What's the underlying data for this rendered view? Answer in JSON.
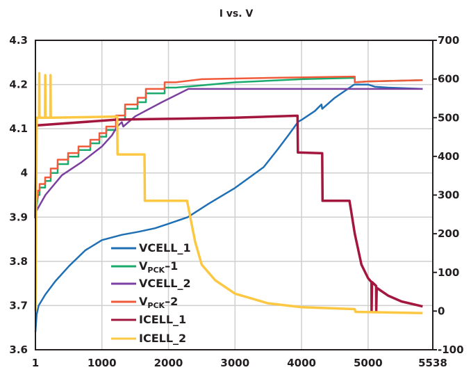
{
  "chart_data": {
    "type": "line",
    "title": "I vs. V",
    "xlim": [
      1,
      5972
    ],
    "xticks": [
      1,
      1000,
      2000,
      3000,
      4000,
      5000
    ],
    "x_end_label": "5538",
    "ylim_left": [
      3.6,
      4.3
    ],
    "yticks_left": [
      "3.6",
      "3.7",
      "3.8",
      "3.9",
      "4",
      "4.1",
      "4.2",
      "4.3"
    ],
    "ylim_right": [
      -100,
      700
    ],
    "yticks_right": [
      "-100",
      "0",
      "100",
      "200",
      "300",
      "400",
      "500",
      "600",
      "700"
    ],
    "grid": true,
    "legend_position": "lower-left-center",
    "series": [
      {
        "name": "VCELL_1",
        "axis": "left",
        "color": "#1f6fb5",
        "points": [
          [
            1,
            3.64
          ],
          [
            20,
            3.68
          ],
          [
            50,
            3.7
          ],
          [
            150,
            3.725
          ],
          [
            300,
            3.755
          ],
          [
            510,
            3.79
          ],
          [
            750,
            3.825
          ],
          [
            1000,
            3.848
          ],
          [
            1300,
            3.86
          ],
          [
            1550,
            3.867
          ],
          [
            1800,
            3.875
          ],
          [
            2000,
            3.885
          ],
          [
            2290,
            3.9
          ],
          [
            2600,
            3.93
          ],
          [
            3000,
            3.966
          ],
          [
            3430,
            4.013
          ],
          [
            3640,
            4.053
          ],
          [
            3800,
            4.085
          ],
          [
            3950,
            4.116
          ],
          [
            4000,
            4.12
          ],
          [
            4200,
            4.14
          ],
          [
            4300,
            4.155
          ],
          [
            4310,
            4.145
          ],
          [
            4500,
            4.17
          ],
          [
            4790,
            4.2
          ],
          [
            5000,
            4.2
          ],
          [
            5100,
            4.195
          ],
          [
            5300,
            4.193
          ],
          [
            5820,
            4.19
          ]
        ]
      },
      {
        "name": "VPCK–1",
        "axis": "left",
        "color": "#1aaa6e",
        "points": [
          [
            1,
            3.9
          ],
          [
            40,
            3.95
          ],
          [
            64,
            3.95
          ],
          [
            64,
            3.967
          ],
          [
            147,
            3.967
          ],
          [
            147,
            3.982
          ],
          [
            231,
            3.982
          ],
          [
            231,
            4.0
          ],
          [
            335,
            4.0
          ],
          [
            335,
            4.02
          ],
          [
            492,
            4.02
          ],
          [
            492,
            4.037
          ],
          [
            648,
            4.037
          ],
          [
            648,
            4.052
          ],
          [
            826,
            4.052
          ],
          [
            826,
            4.067
          ],
          [
            962,
            4.067
          ],
          [
            962,
            4.082
          ],
          [
            1066,
            4.082
          ],
          [
            1066,
            4.097
          ],
          [
            1212,
            4.097
          ],
          [
            1212,
            4.12
          ],
          [
            1348,
            4.12
          ],
          [
            1348,
            4.145
          ],
          [
            1536,
            4.145
          ],
          [
            1536,
            4.16
          ],
          [
            1661,
            4.16
          ],
          [
            1661,
            4.18
          ],
          [
            1943,
            4.18
          ],
          [
            1943,
            4.193
          ],
          [
            2110,
            4.193
          ],
          [
            2500,
            4.198
          ],
          [
            3000,
            4.205
          ],
          [
            4000,
            4.212
          ],
          [
            4800,
            4.215
          ],
          [
            4800,
            4.205
          ],
          [
            5000,
            4.207
          ],
          [
            5820,
            4.21
          ]
        ]
      },
      {
        "name": "VCELL_2",
        "axis": "left",
        "color": "#7b3fa0",
        "points": [
          [
            1,
            3.91
          ],
          [
            150,
            3.95
          ],
          [
            400,
            3.995
          ],
          [
            700,
            4.025
          ],
          [
            1000,
            4.06
          ],
          [
            1150,
            4.085
          ],
          [
            1230,
            4.105
          ],
          [
            1300,
            4.115
          ],
          [
            1320,
            4.105
          ],
          [
            1500,
            4.128
          ],
          [
            1900,
            4.16
          ],
          [
            2300,
            4.19
          ],
          [
            3000,
            4.19
          ],
          [
            4000,
            4.19
          ],
          [
            5000,
            4.19
          ],
          [
            5820,
            4.19
          ]
        ]
      },
      {
        "name": "VPCK–2",
        "axis": "left",
        "color": "#f05a3a",
        "points": [
          [
            1,
            3.91
          ],
          [
            40,
            3.96
          ],
          [
            64,
            3.96
          ],
          [
            64,
            3.975
          ],
          [
            147,
            3.975
          ],
          [
            147,
            3.99
          ],
          [
            231,
            3.99
          ],
          [
            231,
            4.01
          ],
          [
            335,
            4.01
          ],
          [
            335,
            4.03
          ],
          [
            492,
            4.03
          ],
          [
            492,
            4.045
          ],
          [
            648,
            4.045
          ],
          [
            648,
            4.06
          ],
          [
            826,
            4.06
          ],
          [
            826,
            4.075
          ],
          [
            962,
            4.075
          ],
          [
            962,
            4.09
          ],
          [
            1066,
            4.09
          ],
          [
            1066,
            4.105
          ],
          [
            1212,
            4.105
          ],
          [
            1212,
            4.13
          ],
          [
            1348,
            4.13
          ],
          [
            1348,
            4.155
          ],
          [
            1536,
            4.155
          ],
          [
            1536,
            4.17
          ],
          [
            1661,
            4.17
          ],
          [
            1661,
            4.19
          ],
          [
            1943,
            4.19
          ],
          [
            1943,
            4.205
          ],
          [
            2110,
            4.205
          ],
          [
            2500,
            4.212
          ],
          [
            3500,
            4.215
          ],
          [
            4800,
            4.218
          ],
          [
            4800,
            4.205
          ],
          [
            5000,
            4.207
          ],
          [
            5820,
            4.21
          ]
        ]
      },
      {
        "name": "ICELL_1",
        "axis": "right",
        "color": "#a3173e",
        "points": [
          [
            1,
            240
          ],
          [
            15,
            480
          ],
          [
            1230,
            495
          ],
          [
            2000,
            497
          ],
          [
            3000,
            500
          ],
          [
            3900,
            505
          ],
          [
            3940,
            505
          ],
          [
            3945,
            410
          ],
          [
            4310,
            408
          ],
          [
            4315,
            285
          ],
          [
            4720,
            285
          ],
          [
            4800,
            200
          ],
          [
            4900,
            120
          ],
          [
            5000,
            85
          ],
          [
            5050,
            75
          ],
          [
            5052,
            0
          ],
          [
            5060,
            75
          ],
          [
            5120,
            65
          ],
          [
            5122,
            0
          ],
          [
            5130,
            60
          ],
          [
            5300,
            40
          ],
          [
            5500,
            25
          ],
          [
            5820,
            12
          ]
        ]
      },
      {
        "name": "ICELL_2",
        "axis": "right",
        "color": "#fcc843",
        "points": [
          [
            1,
            0
          ],
          [
            20,
            500
          ],
          [
            55,
            500
          ],
          [
            58,
            615
          ],
          [
            62,
            500
          ],
          [
            145,
            500
          ],
          [
            148,
            610
          ],
          [
            152,
            500
          ],
          [
            225,
            500
          ],
          [
            228,
            610
          ],
          [
            232,
            500
          ],
          [
            1230,
            503
          ],
          [
            1235,
            405
          ],
          [
            1640,
            405
          ],
          [
            1645,
            285
          ],
          [
            2280,
            285
          ],
          [
            2400,
            180
          ],
          [
            2500,
            120
          ],
          [
            2700,
            80
          ],
          [
            3000,
            45
          ],
          [
            3500,
            20
          ],
          [
            4000,
            10
          ],
          [
            4800,
            5
          ],
          [
            4810,
            -2
          ],
          [
            5820,
            -5
          ]
        ]
      }
    ]
  }
}
